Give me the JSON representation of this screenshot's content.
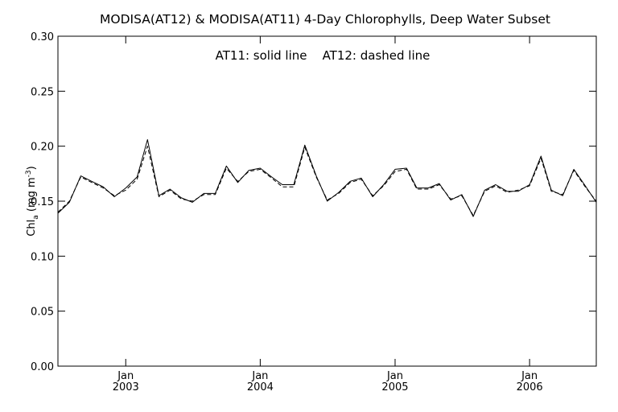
{
  "chart_data": {
    "type": "line",
    "title": "MODISA(AT12) & MODISA(AT11) 4-Day Chlorophylls, Deep Water Subset",
    "annotation": "AT11: solid line    AT12: dashed line",
    "ylabel_main": "Chl",
    "ylabel_sub": "a",
    "ylabel_units": " (mg m",
    "ylabel_sup": "-3",
    "ylabel_close": ")",
    "xlabel": "",
    "ylim": [
      0.0,
      0.3
    ],
    "yticks": [
      0.0,
      0.05,
      0.1,
      0.15,
      0.2,
      0.25,
      0.3
    ],
    "ytick_labels": [
      "0.00",
      "0.05",
      "0.10",
      "0.15",
      "0.20",
      "0.25",
      "0.30"
    ],
    "xlim": [
      "2002-07-01",
      "2006-07-01"
    ],
    "xticks": [
      {
        "date": "2003-01-01",
        "month": "Jan",
        "year": "2003"
      },
      {
        "date": "2004-01-01",
        "month": "Jan",
        "year": "2004"
      },
      {
        "date": "2005-01-01",
        "month": "Jan",
        "year": "2005"
      },
      {
        "date": "2006-01-01",
        "month": "Jan",
        "year": "2006"
      }
    ],
    "grid": false,
    "series": [
      {
        "name": "AT11",
        "style": "solid",
        "x": [
          "2002-07-01",
          "2002-08-01",
          "2002-09-01",
          "2002-10-01",
          "2002-11-01",
          "2002-12-01",
          "2003-01-01",
          "2003-02-01",
          "2003-03-01",
          "2003-04-01",
          "2003-05-01",
          "2003-06-01",
          "2003-07-01",
          "2003-08-01",
          "2003-09-01",
          "2003-10-01",
          "2003-11-01",
          "2003-12-01",
          "2004-01-01",
          "2004-02-01",
          "2004-03-01",
          "2004-04-01",
          "2004-05-01",
          "2004-06-01",
          "2004-07-01",
          "2004-08-01",
          "2004-09-01",
          "2004-10-01",
          "2004-11-01",
          "2004-12-01",
          "2005-01-01",
          "2005-02-01",
          "2005-03-01",
          "2005-04-01",
          "2005-05-01",
          "2005-06-01",
          "2005-07-01",
          "2005-08-01",
          "2005-09-01",
          "2005-10-01",
          "2005-11-01",
          "2005-12-01",
          "2006-01-01",
          "2006-02-01",
          "2006-03-01",
          "2006-04-01",
          "2006-05-01",
          "2006-06-01",
          "2006-07-01"
        ],
        "values": [
          0.139,
          0.149,
          0.173,
          0.168,
          0.163,
          0.154,
          0.162,
          0.172,
          0.206,
          0.155,
          0.161,
          0.153,
          0.149,
          0.157,
          0.157,
          0.182,
          0.167,
          0.178,
          0.18,
          0.172,
          0.165,
          0.165,
          0.201,
          0.173,
          0.15,
          0.158,
          0.168,
          0.171,
          0.154,
          0.165,
          0.179,
          0.18,
          0.162,
          0.162,
          0.166,
          0.151,
          0.156,
          0.136,
          0.16,
          0.165,
          0.159,
          0.159,
          0.165,
          0.191,
          0.16,
          0.155,
          0.179,
          0.164,
          0.149
        ]
      },
      {
        "name": "AT12",
        "style": "dashed",
        "x": [
          "2002-07-01",
          "2002-08-01",
          "2002-09-01",
          "2002-10-01",
          "2002-11-01",
          "2002-12-01",
          "2003-01-01",
          "2003-02-01",
          "2003-03-01",
          "2003-04-01",
          "2003-05-01",
          "2003-06-01",
          "2003-07-01",
          "2003-08-01",
          "2003-09-01",
          "2003-10-01",
          "2003-11-01",
          "2003-12-01",
          "2004-01-01",
          "2004-02-01",
          "2004-03-01",
          "2004-04-01",
          "2004-05-01",
          "2004-06-01",
          "2004-07-01",
          "2004-08-01",
          "2004-09-01",
          "2004-10-01",
          "2004-11-01",
          "2004-12-01",
          "2005-01-01",
          "2005-02-01",
          "2005-03-01",
          "2005-04-01",
          "2005-05-01",
          "2005-06-01",
          "2005-07-01",
          "2005-08-01",
          "2005-09-01",
          "2005-10-01",
          "2005-11-01",
          "2005-12-01",
          "2006-01-01",
          "2006-02-01",
          "2006-03-01",
          "2006-04-01",
          "2006-05-01",
          "2006-06-01",
          "2006-07-01"
        ],
        "values": [
          0.14,
          0.15,
          0.172,
          0.167,
          0.162,
          0.155,
          0.16,
          0.17,
          0.2,
          0.154,
          0.16,
          0.152,
          0.15,
          0.156,
          0.156,
          0.18,
          0.168,
          0.177,
          0.179,
          0.171,
          0.163,
          0.163,
          0.199,
          0.172,
          0.151,
          0.157,
          0.167,
          0.17,
          0.155,
          0.164,
          0.177,
          0.179,
          0.161,
          0.161,
          0.165,
          0.152,
          0.155,
          0.137,
          0.159,
          0.164,
          0.158,
          0.16,
          0.164,
          0.189,
          0.159,
          0.156,
          0.178,
          0.163,
          0.15
        ]
      }
    ]
  }
}
